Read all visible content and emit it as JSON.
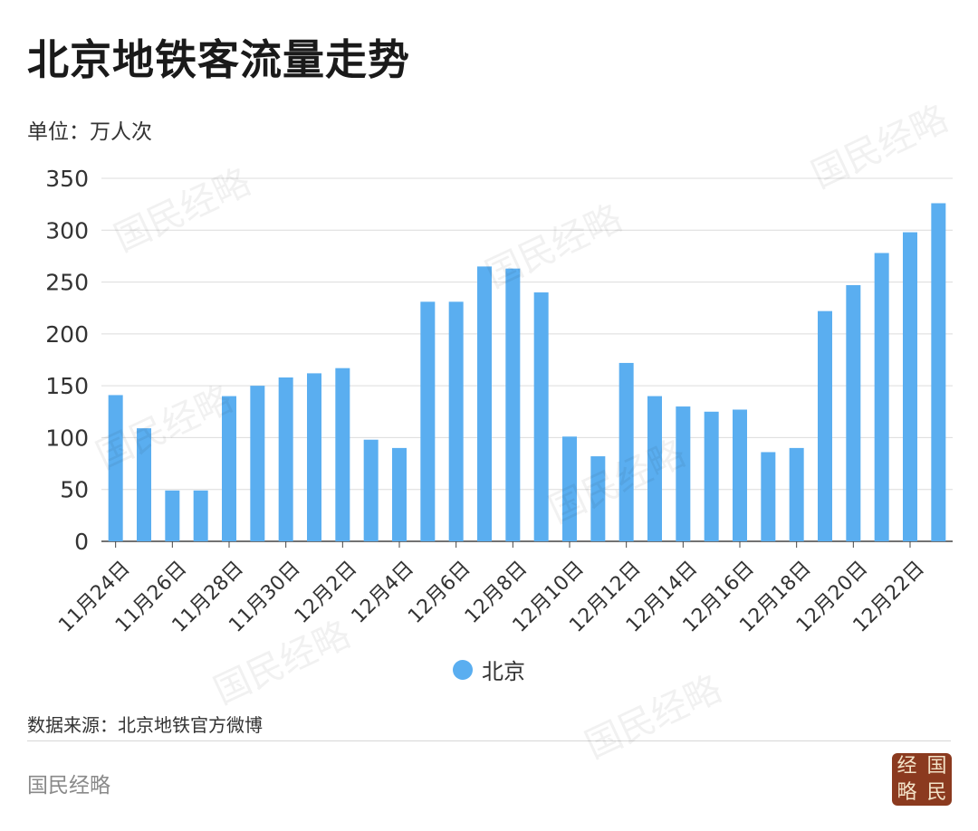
{
  "header": {
    "title": "北京地铁客流量走势",
    "unit": "单位：万人次"
  },
  "legend": {
    "label": "北京",
    "color": "#5aaef0"
  },
  "footer": {
    "source": "数据来源：北京地铁官方微博",
    "brand": "国民经略",
    "seal_chars": [
      "经",
      "国",
      "略",
      "民"
    ]
  },
  "watermark_text": "国民经略",
  "chart_data": {
    "type": "bar",
    "categories": [
      "11月24日",
      "11月25日",
      "11月26日",
      "11月27日",
      "11月28日",
      "11月29日",
      "11月30日",
      "12月1日",
      "12月2日",
      "12月3日",
      "12月4日",
      "12月5日",
      "12月6日",
      "12月7日",
      "12月8日",
      "12月9日",
      "12月10日",
      "12月11日",
      "12月12日",
      "12月13日",
      "12月14日",
      "12月15日",
      "12月16日",
      "12月17日",
      "12月18日",
      "12月19日",
      "12月20日",
      "12月21日",
      "12月22日",
      "12月23日"
    ],
    "tick_labels": [
      "11月24日",
      "",
      "11月26日",
      "",
      "11月28日",
      "",
      "11月30日",
      "",
      "12月2日",
      "",
      "12月4日",
      "",
      "12月6日",
      "",
      "12月8日",
      "",
      "12月10日",
      "",
      "12月12日",
      "",
      "12月14日",
      "",
      "12月16日",
      "",
      "12月18日",
      "",
      "12月20日",
      "",
      "12月22日",
      ""
    ],
    "series": [
      {
        "name": "北京",
        "values": [
          141,
          109,
          49,
          49,
          140,
          150,
          158,
          162,
          167,
          98,
          90,
          231,
          231,
          265,
          263,
          240,
          101,
          82,
          172,
          140,
          130,
          125,
          127,
          86,
          90,
          222,
          247,
          278,
          298,
          326
        ]
      }
    ],
    "ylim": [
      0,
      350
    ],
    "yticks": [
      0,
      50,
      100,
      150,
      200,
      250,
      300,
      350
    ],
    "grid": true,
    "legend_position": "bottom-center",
    "bar_color": "#5aaef0"
  }
}
